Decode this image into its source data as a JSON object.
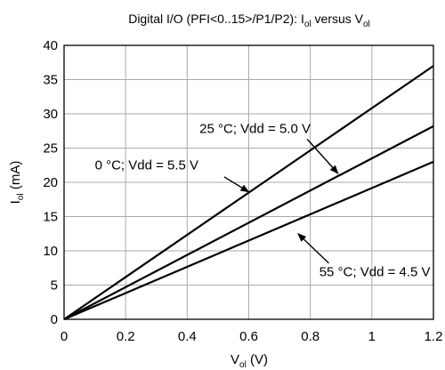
{
  "chart_data": {
    "type": "line",
    "title": {
      "prefix": "Digital I/O (PFI<0..15>/P1/P2): I",
      "sub1": "ol",
      "middle": " versus V",
      "sub2": "ol"
    },
    "xlabel": {
      "main": "V",
      "sub": "ol",
      "unit": " (V)"
    },
    "ylabel": {
      "main": "I",
      "sub": "ol",
      "unit": " (mA)"
    },
    "xlim": [
      0,
      1.2
    ],
    "ylim": [
      0,
      40
    ],
    "x_ticks": [
      0,
      0.2,
      0.4,
      0.6,
      0.8,
      1,
      1.2
    ],
    "x_tick_labels": [
      "0",
      "0.2",
      "0.4",
      "0.6",
      "0.8",
      "1",
      "1.2"
    ],
    "y_ticks": [
      0,
      5,
      10,
      15,
      20,
      25,
      30,
      35,
      40
    ],
    "y_tick_labels": [
      "0",
      "5",
      "10",
      "15",
      "20",
      "25",
      "30",
      "35",
      "40"
    ],
    "grid": true,
    "series": [
      {
        "name": "0 °C; Vdd = 5.5 V",
        "x": [
          0,
          1.2
        ],
        "y": [
          0,
          37
        ]
      },
      {
        "name": "25 °C; Vdd = 5.0 V",
        "x": [
          0,
          1.2
        ],
        "y": [
          0,
          28.2
        ]
      },
      {
        "name": "55 °C; Vdd = 4.5 V",
        "x": [
          0,
          1.2
        ],
        "y": [
          0,
          23
        ]
      }
    ],
    "annotations": [
      {
        "text": "25 °C; Vdd = 5.0 V",
        "series": 1,
        "label_at": [
          0.44,
          27.2
        ],
        "anchor": "start",
        "arrow_from": [
          0.79,
          26.3
        ],
        "arrow_to": [
          0.89,
          21.3
        ]
      },
      {
        "text": "0 °C; Vdd = 5.5 V",
        "series": 0,
        "label_at": [
          0.1,
          21.9
        ],
        "anchor": "start",
        "arrow_from": [
          0.52,
          20.8
        ],
        "arrow_to": [
          0.6,
          18.6
        ]
      },
      {
        "text": "55 °C; Vdd = 4.5 V",
        "series": 2,
        "label_at": [
          1.19,
          6.3
        ],
        "anchor": "end",
        "arrow_from": [
          0.86,
          8.2
        ],
        "arrow_to": [
          0.76,
          12.5
        ]
      }
    ]
  }
}
